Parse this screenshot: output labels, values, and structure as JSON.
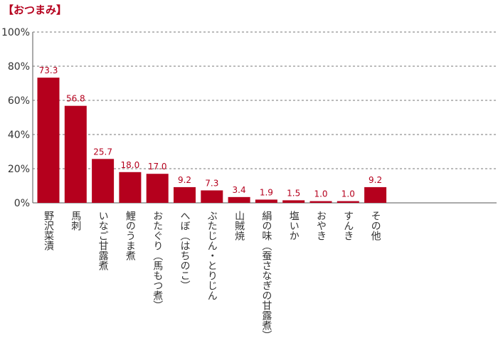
{
  "chart_data": {
    "type": "bar",
    "title": "【おつまみ】",
    "categories": [
      "野沢菜漬",
      "馬刺",
      "いなご甘露煮",
      "鯉のうま煮",
      "おたぐり（馬もつ煮）",
      "へぼ（はちのこ）",
      "ぶたじん・とりじん",
      "山賊焼",
      "絹の味（蚕さなぎの甘露煮）",
      "塩いか",
      "おやき",
      "すんき",
      "その他"
    ],
    "values": [
      73.3,
      56.8,
      25.7,
      18.0,
      17.0,
      9.2,
      7.3,
      3.4,
      1.9,
      1.5,
      1.0,
      1.0,
      9.2
    ],
    "value_labels": [
      "73.3",
      "56.8",
      "25.7",
      "18.0",
      "17.0",
      "9.2",
      "7.3",
      "3.4",
      "1.9",
      "1.5",
      "1.0",
      "1.0",
      "9.2"
    ],
    "yticks": [
      "0%",
      "20%",
      "40%",
      "60%",
      "80%",
      "100%"
    ],
    "ylim": [
      0,
      100
    ],
    "grid": true,
    "bar_color": "#b5001d",
    "xlabel": "",
    "ylabel": ""
  }
}
